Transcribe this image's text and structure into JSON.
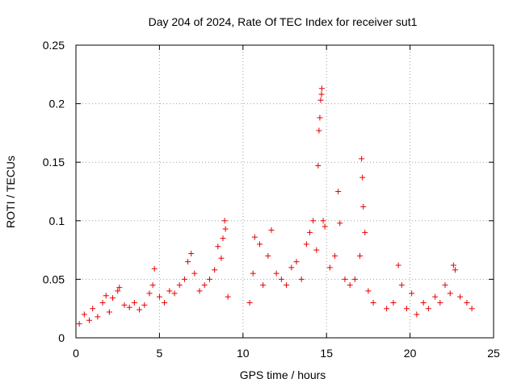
{
  "chart_data": {
    "type": "scatter",
    "title": "Day 204 of 2024, Rate Of TEC Index for receiver sut1",
    "xlabel": "GPS time / hours",
    "ylabel": "ROTI / TECUs",
    "xlim": [
      0,
      25
    ],
    "ylim": [
      0,
      0.25
    ],
    "xticks": [
      0,
      5,
      10,
      15,
      20,
      25
    ],
    "yticks": [
      0,
      0.05,
      0.1,
      0.15,
      0.2,
      0.25
    ],
    "xtick_labels": [
      "0",
      "5",
      "10",
      "15",
      "20",
      "25"
    ],
    "ytick_labels": [
      "0",
      "0.05",
      "0.1",
      "0.15",
      "0.2",
      "0.25"
    ],
    "grid": true,
    "marker": "plus",
    "color": "#e60000",
    "series": [
      {
        "values_note": "",
        "points": [
          [
            0.2,
            0.012
          ],
          [
            0.5,
            0.02
          ],
          [
            0.8,
            0.015
          ],
          [
            1.0,
            0.025
          ],
          [
            1.3,
            0.018
          ],
          [
            1.6,
            0.03
          ],
          [
            1.8,
            0.036
          ],
          [
            2.0,
            0.022
          ],
          [
            2.2,
            0.034
          ],
          [
            2.5,
            0.04
          ],
          [
            2.6,
            0.043
          ],
          [
            2.9,
            0.028
          ],
          [
            3.2,
            0.026
          ],
          [
            3.5,
            0.03
          ],
          [
            3.8,
            0.024
          ],
          [
            4.1,
            0.028
          ],
          [
            4.4,
            0.038
          ],
          [
            4.6,
            0.045
          ],
          [
            4.7,
            0.059
          ],
          [
            5.0,
            0.035
          ],
          [
            5.3,
            0.03
          ],
          [
            5.6,
            0.04
          ],
          [
            5.9,
            0.038
          ],
          [
            6.2,
            0.045
          ],
          [
            6.5,
            0.05
          ],
          [
            6.7,
            0.065
          ],
          [
            6.9,
            0.072
          ],
          [
            7.1,
            0.055
          ],
          [
            7.4,
            0.04
          ],
          [
            7.7,
            0.045
          ],
          [
            8.0,
            0.05
          ],
          [
            8.3,
            0.058
          ],
          [
            8.5,
            0.078
          ],
          [
            8.7,
            0.068
          ],
          [
            8.8,
            0.085
          ],
          [
            8.9,
            0.1
          ],
          [
            8.95,
            0.093
          ],
          [
            9.1,
            0.035
          ],
          [
            10.4,
            0.03
          ],
          [
            10.6,
            0.055
          ],
          [
            10.7,
            0.086
          ],
          [
            11.0,
            0.08
          ],
          [
            11.2,
            0.045
          ],
          [
            11.5,
            0.07
          ],
          [
            11.7,
            0.092
          ],
          [
            12.0,
            0.055
          ],
          [
            12.3,
            0.05
          ],
          [
            12.6,
            0.045
          ],
          [
            12.9,
            0.06
          ],
          [
            13.2,
            0.065
          ],
          [
            13.5,
            0.05
          ],
          [
            13.8,
            0.08
          ],
          [
            14.0,
            0.09
          ],
          [
            14.2,
            0.1
          ],
          [
            14.4,
            0.075
          ],
          [
            14.5,
            0.147
          ],
          [
            14.55,
            0.177
          ],
          [
            14.6,
            0.188
          ],
          [
            14.65,
            0.203
          ],
          [
            14.7,
            0.208
          ],
          [
            14.72,
            0.213
          ],
          [
            14.8,
            0.1
          ],
          [
            14.9,
            0.095
          ],
          [
            15.2,
            0.06
          ],
          [
            15.5,
            0.07
          ],
          [
            15.7,
            0.125
          ],
          [
            15.8,
            0.098
          ],
          [
            16.1,
            0.05
          ],
          [
            16.4,
            0.045
          ],
          [
            16.7,
            0.05
          ],
          [
            17.0,
            0.07
          ],
          [
            17.1,
            0.153
          ],
          [
            17.15,
            0.137
          ],
          [
            17.2,
            0.112
          ],
          [
            17.3,
            0.09
          ],
          [
            17.5,
            0.04
          ],
          [
            17.8,
            0.03
          ],
          [
            18.6,
            0.025
          ],
          [
            19.0,
            0.03
          ],
          [
            19.3,
            0.062
          ],
          [
            19.5,
            0.045
          ],
          [
            19.8,
            0.025
          ],
          [
            20.1,
            0.038
          ],
          [
            20.4,
            0.02
          ],
          [
            20.8,
            0.03
          ],
          [
            21.1,
            0.025
          ],
          [
            21.5,
            0.035
          ],
          [
            21.8,
            0.03
          ],
          [
            22.1,
            0.045
          ],
          [
            22.4,
            0.038
          ],
          [
            22.6,
            0.062
          ],
          [
            22.7,
            0.058
          ],
          [
            23.0,
            0.035
          ],
          [
            23.4,
            0.03
          ],
          [
            23.7,
            0.025
          ]
        ]
      }
    ]
  }
}
